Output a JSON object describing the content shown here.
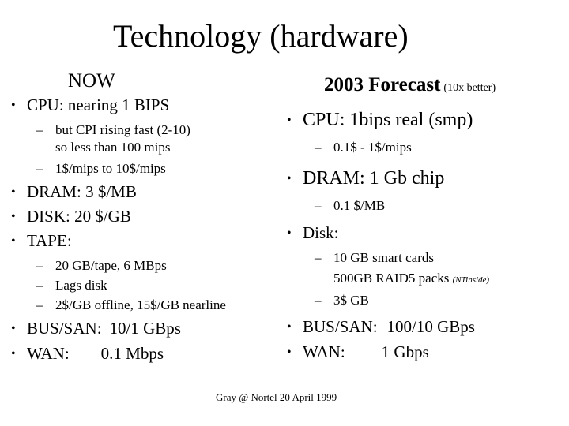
{
  "title": "Technology (hardware)",
  "left": {
    "heading": "NOW",
    "cpu": "CPU: nearing 1 BIPS",
    "cpu_sub1_line1": "but CPI rising fast (2-10)",
    "cpu_sub1_line2": "so less than 100 mips",
    "cpu_sub2": "1$/mips to 10$/mips",
    "dram": "DRAM: 3 $/MB",
    "disk": "DISK: 20 $/GB",
    "tape": "TAPE:",
    "tape_sub1": "20 GB/tape, 6 MBps",
    "tape_sub2": "Lags disk",
    "tape_sub3": "2$/GB offline, 15$/GB nearline",
    "bus_label": "BUS/SAN:",
    "bus_value": "10/1 GBps",
    "wan_label": "WAN:",
    "wan_value": "0.1 Mbps"
  },
  "right": {
    "heading": "2003 Forecast",
    "heading_note": "(10x better)",
    "cpu": "CPU: 1bips real (smp)",
    "cpu_sub": "0.1$ - 1$/mips",
    "dram": "DRAM: 1 Gb chip",
    "dram_sub": "0.1 $/MB",
    "disk": "Disk:",
    "disk_sub1": "10 GB smart cards",
    "disk_sub2": "500GB RAID5 packs",
    "disk_sub2_note": "(NTinside)",
    "disk_sub3": "3$ GB",
    "bus_label": "BUS/SAN:",
    "bus_value": "100/10 GBps",
    "wan_label": "WAN:",
    "wan_value": "1 Gbps"
  },
  "footer": "Gray @ Nortel 20 April 1999",
  "symbols": {
    "bullet": "•",
    "dash": "–"
  }
}
